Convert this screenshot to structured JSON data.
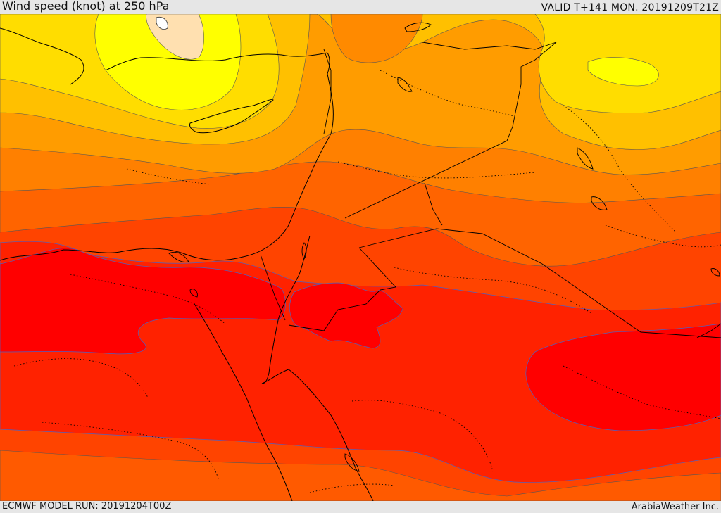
{
  "header": {
    "title": "Wind speed (knot) at 250 hPa",
    "valid_time": "VALID T+141 MON. 20191209T21Z"
  },
  "footer": {
    "model_run": "ECMWF MODEL RUN: 20191204T00Z",
    "credit": "ArabiaWeather Inc."
  },
  "map": {
    "variable": "wind speed",
    "level": "250 hPa",
    "units": "knot",
    "fill_colors": [
      "#ffe0b0",
      "#ffff00",
      "#ffdd00",
      "#ffc000",
      "#ff9c00",
      "#ff8000",
      "#ff6400",
      "#ff4400",
      "#ff2200",
      "#ff0000"
    ]
  }
}
